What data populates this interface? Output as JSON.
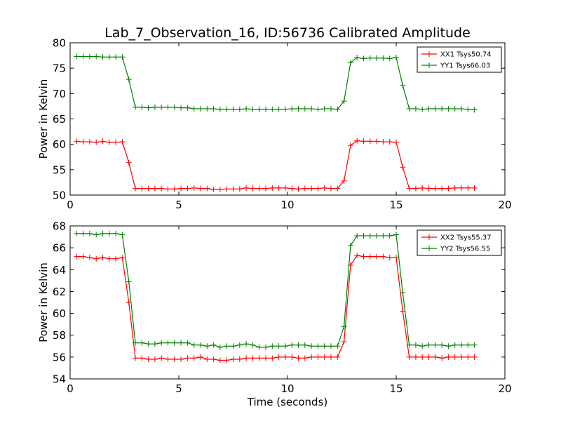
{
  "figure": {
    "title": "Lab_7_Observation_16, ID:56736 Calibrated Amplitude",
    "xlabel": "Time (seconds)"
  },
  "chart_data": [
    {
      "type": "line",
      "ylabel": "Power in Kelvin",
      "xlim": [
        0,
        20
      ],
      "ylim": [
        50,
        80
      ],
      "xticks": [
        0,
        5,
        10,
        15,
        20
      ],
      "yticks": [
        50,
        55,
        60,
        65,
        70,
        75,
        80
      ],
      "legend_position": "top-right",
      "x": [
        0.3,
        0.6,
        0.9,
        1.2,
        1.5,
        1.8,
        2.1,
        2.4,
        2.7,
        3.0,
        3.3,
        3.6,
        3.9,
        4.2,
        4.5,
        4.8,
        5.1,
        5.4,
        5.7,
        6.0,
        6.3,
        6.6,
        6.9,
        7.2,
        7.5,
        7.8,
        8.1,
        8.4,
        8.7,
        9.0,
        9.3,
        9.6,
        9.9,
        10.2,
        10.5,
        10.8,
        11.1,
        11.4,
        11.7,
        12.0,
        12.3,
        12.6,
        12.9,
        13.2,
        13.5,
        13.8,
        14.1,
        14.4,
        14.7,
        15.0,
        15.3,
        15.6,
        15.9,
        16.2,
        16.5,
        16.8,
        17.1,
        17.4,
        17.7,
        18.0,
        18.3,
        18.6
      ],
      "series": [
        {
          "name": "XX1 Tsys50.74",
          "color": "#ff0000",
          "values": [
            60.6,
            60.5,
            60.5,
            60.4,
            60.6,
            60.4,
            60.4,
            60.5,
            56.4,
            51.3,
            51.3,
            51.3,
            51.3,
            51.3,
            51.2,
            51.2,
            51.3,
            51.3,
            51.4,
            51.3,
            51.3,
            51.1,
            51.1,
            51.2,
            51.2,
            51.2,
            51.4,
            51.3,
            51.3,
            51.3,
            51.4,
            51.4,
            51.4,
            51.3,
            51.2,
            51.3,
            51.3,
            51.3,
            51.4,
            51.3,
            51.3,
            52.8,
            59.8,
            60.7,
            60.6,
            60.6,
            60.6,
            60.5,
            60.5,
            60.4,
            55.5,
            51.3,
            51.3,
            51.4,
            51.3,
            51.3,
            51.3,
            51.3,
            51.4,
            51.4,
            51.4,
            51.4
          ]
        },
        {
          "name": "YY1 Tsys66.03",
          "color": "#008000",
          "values": [
            77.3,
            77.3,
            77.3,
            77.3,
            77.2,
            77.2,
            77.2,
            77.2,
            72.8,
            67.3,
            67.3,
            67.2,
            67.3,
            67.3,
            67.3,
            67.3,
            67.2,
            67.2,
            67.0,
            67.0,
            67.0,
            67.0,
            66.9,
            66.9,
            66.9,
            66.9,
            67.0,
            66.9,
            66.9,
            66.9,
            66.9,
            66.9,
            66.9,
            67.0,
            67.0,
            67.0,
            67.0,
            66.9,
            67.0,
            67.0,
            66.9,
            68.5,
            76.1,
            77.1,
            76.9,
            77.0,
            77.0,
            77.0,
            76.9,
            77.1,
            71.6,
            67.0,
            67.0,
            66.9,
            67.0,
            67.0,
            67.0,
            67.0,
            67.0,
            67.0,
            66.9,
            66.8
          ]
        }
      ]
    },
    {
      "type": "line",
      "ylabel": "Power in Kelvin",
      "xlim": [
        0,
        20
      ],
      "ylim": [
        54,
        68
      ],
      "xticks": [
        0,
        5,
        10,
        15,
        20
      ],
      "yticks": [
        54,
        56,
        58,
        60,
        62,
        64,
        66,
        68
      ],
      "legend_position": "top-right",
      "x": [
        0.3,
        0.6,
        0.9,
        1.2,
        1.5,
        1.8,
        2.1,
        2.4,
        2.7,
        3.0,
        3.3,
        3.6,
        3.9,
        4.2,
        4.5,
        4.8,
        5.1,
        5.4,
        5.7,
        6.0,
        6.3,
        6.6,
        6.9,
        7.2,
        7.5,
        7.8,
        8.1,
        8.4,
        8.7,
        9.0,
        9.3,
        9.6,
        9.9,
        10.2,
        10.5,
        10.8,
        11.1,
        11.4,
        11.7,
        12.0,
        12.3,
        12.6,
        12.9,
        13.2,
        13.5,
        13.8,
        14.1,
        14.4,
        14.7,
        15.0,
        15.3,
        15.6,
        15.9,
        16.2,
        16.5,
        16.8,
        17.1,
        17.4,
        17.7,
        18.0,
        18.3,
        18.6
      ],
      "series": [
        {
          "name": "XX2 Tsys55.37",
          "color": "#ff0000",
          "values": [
            65.2,
            65.2,
            65.1,
            65.0,
            65.1,
            65.0,
            65.0,
            65.1,
            61.0,
            55.9,
            55.9,
            55.8,
            55.8,
            55.9,
            55.8,
            55.8,
            55.8,
            55.9,
            55.9,
            56.0,
            55.8,
            55.8,
            55.7,
            55.7,
            55.8,
            55.8,
            55.9,
            55.9,
            55.9,
            55.9,
            55.9,
            56.0,
            56.0,
            56.0,
            55.9,
            55.9,
            56.0,
            56.0,
            56.0,
            56.0,
            56.0,
            57.4,
            64.4,
            65.3,
            65.2,
            65.2,
            65.2,
            65.2,
            65.1,
            65.1,
            60.2,
            56.0,
            56.0,
            56.0,
            56.0,
            56.0,
            55.9,
            56.0,
            56.0,
            56.0,
            56.0,
            56.0
          ]
        },
        {
          "name": "YY2 Tsys56.55",
          "color": "#008000",
          "values": [
            67.3,
            67.3,
            67.3,
            67.2,
            67.3,
            67.3,
            67.3,
            67.2,
            62.9,
            57.3,
            57.3,
            57.2,
            57.2,
            57.3,
            57.3,
            57.3,
            57.3,
            57.3,
            57.1,
            57.1,
            57.0,
            57.1,
            56.9,
            57.0,
            57.0,
            57.1,
            57.2,
            57.1,
            56.9,
            56.9,
            57.0,
            57.0,
            57.0,
            57.1,
            57.1,
            57.1,
            57.0,
            57.0,
            57.0,
            57.0,
            57.0,
            58.8,
            66.2,
            67.1,
            67.1,
            67.1,
            67.1,
            67.1,
            67.1,
            67.2,
            61.9,
            57.1,
            57.1,
            57.0,
            57.1,
            57.1,
            57.1,
            57.0,
            57.1,
            57.1,
            57.1,
            57.1
          ]
        }
      ]
    }
  ]
}
